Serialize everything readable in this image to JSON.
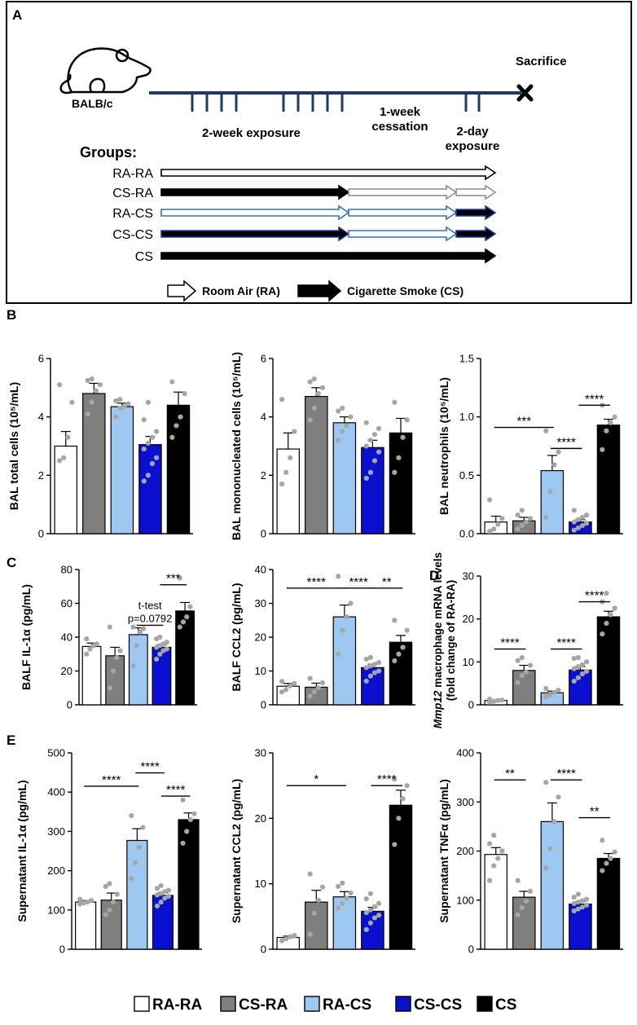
{
  "colors": {
    "RA-RA": "#ffffff",
    "CS-RA": "#7f7f7f",
    "RA-CS": "#9cc8f2",
    "CS-CS": "#0a0fd0",
    "CS": "#000000",
    "dot": "#a6a6a6",
    "timeline": "#1f3864"
  },
  "panel_labels": {
    "a": "A",
    "b": "B",
    "c": "C",
    "d": "D",
    "e": "E"
  },
  "schematic": {
    "strain": "BALB/c",
    "sacrifice": "Sacrifice",
    "exposure1": "2-week exposure",
    "cessation_line1": "1-week",
    "cessation_line2": "cessation",
    "exposure2_line1": "2-day",
    "exposure2_line2": "exposure",
    "groups_title": "Groups:",
    "groups": [
      {
        "label": "RA-RA",
        "segments": [
          "RA"
        ]
      },
      {
        "label": "CS-RA",
        "segments": [
          "CS",
          "RA-grey",
          "RA-grey"
        ]
      },
      {
        "label": "RA-CS",
        "segments": [
          "RA-blue",
          "RA-blue",
          "CS-blue"
        ]
      },
      {
        "label": "CS-CS",
        "segments": [
          "CS-blue",
          "RA-blue",
          "CS-blue"
        ]
      },
      {
        "label": "CS",
        "segments": [
          "CS"
        ]
      }
    ],
    "legend_ra": "Room Air (RA)",
    "legend_cs": "Cigarette Smoke (CS)"
  },
  "chart_data": [
    {
      "id": "b1",
      "type": "bar",
      "ylabel": "BAL total cells (10⁵/mL)",
      "ylim": [
        0,
        6
      ],
      "yticks": [
        "0",
        "2",
        "4",
        "6"
      ],
      "categories": [
        "RA-RA",
        "CS-RA",
        "RA-CS",
        "CS-CS",
        "CS"
      ],
      "values": [
        3.0,
        4.8,
        4.35,
        3.05,
        4.4
      ],
      "errors": [
        0.5,
        0.35,
        0.12,
        0.28,
        0.45
      ],
      "points": [
        [
          2.5,
          2.6,
          3.3,
          4.5,
          5.1
        ],
        [
          4.1,
          4.5,
          4.9,
          5.1,
          5.25,
          5.3
        ],
        [
          4.0,
          4.3,
          4.35,
          4.45,
          4.55,
          4.6
        ],
        [
          1.8,
          2.0,
          2.4,
          2.6,
          2.9,
          3.1,
          3.3,
          3.5,
          3.9,
          4.5
        ],
        [
          3.3,
          3.7,
          4.0,
          4.8,
          5.2
        ]
      ],
      "sig": []
    },
    {
      "id": "b2",
      "type": "bar",
      "ylabel": "BAL mononucleated cells (10⁵/mL)",
      "ylim": [
        0,
        6
      ],
      "yticks": [
        "0",
        "2",
        "4",
        "6"
      ],
      "categories": [
        "RA-RA",
        "CS-RA",
        "RA-CS",
        "CS-CS",
        "CS"
      ],
      "values": [
        2.9,
        4.7,
        3.8,
        2.95,
        3.45
      ],
      "errors": [
        0.55,
        0.3,
        0.2,
        0.25,
        0.5
      ],
      "points": [
        [
          1.7,
          2.1,
          2.6,
          3.5,
          4.6
        ],
        [
          3.9,
          4.3,
          4.8,
          5.0,
          5.2,
          5.3
        ],
        [
          3.2,
          3.5,
          3.7,
          4.0,
          4.2,
          4.3
        ],
        [
          1.9,
          2.1,
          2.5,
          2.8,
          3.0,
          3.2,
          3.4,
          3.6,
          3.8
        ],
        [
          2.1,
          2.6,
          3.3,
          3.9,
          4.5
        ]
      ],
      "sig": []
    },
    {
      "id": "b3",
      "type": "bar",
      "ylabel": "BAL neutrophils (10⁵/mL)",
      "ylim": [
        0,
        1.5
      ],
      "yticks": [
        "0.0",
        "0.5",
        "1.0",
        "1.5"
      ],
      "categories": [
        "RA-RA",
        "CS-RA",
        "RA-CS",
        "CS-CS",
        "CS"
      ],
      "values": [
        0.1,
        0.11,
        0.54,
        0.1,
        0.93
      ],
      "errors": [
        0.05,
        0.03,
        0.13,
        0.02,
        0.05
      ],
      "points": [
        [
          0.02,
          0.04,
          0.08,
          0.13,
          0.29
        ],
        [
          0.04,
          0.07,
          0.1,
          0.13,
          0.16,
          0.2
        ],
        [
          0.14,
          0.36,
          0.59,
          0.7,
          0.88
        ],
        [
          0.03,
          0.05,
          0.07,
          0.09,
          0.1,
          0.12,
          0.14,
          0.16,
          0.2
        ],
        [
          0.72,
          0.88,
          0.95,
          1.0,
          1.1
        ]
      ],
      "sig": [
        {
          "from": 0,
          "to": 2,
          "level": 0.91,
          "label": "***"
        },
        {
          "from": 2,
          "to": 3,
          "level": 0.73,
          "label": "****"
        },
        {
          "from": 3,
          "to": 4,
          "level": 1.1,
          "label": "****"
        }
      ]
    },
    {
      "id": "c1",
      "type": "bar",
      "ylabel": "BALF IL-1α (pg/mL)",
      "ylim": [
        0,
        80
      ],
      "yticks": [
        "0",
        "20",
        "40",
        "60",
        "80"
      ],
      "categories": [
        "RA-RA",
        "CS-RA",
        "RA-CS",
        "CS-CS",
        "CS"
      ],
      "values": [
        34.5,
        29,
        41.5,
        34,
        55.5
      ],
      "errors": [
        2,
        5,
        4,
        1.5,
        5
      ],
      "points": [
        [
          30,
          33,
          35,
          36,
          39
        ],
        [
          10,
          20,
          28,
          32,
          46
        ],
        [
          23,
          35,
          43,
          45,
          46
        ],
        [
          27,
          30,
          32,
          33,
          34,
          35,
          36,
          37,
          39,
          40
        ],
        [
          46,
          49,
          52,
          58,
          75
        ]
      ],
      "sig": [
        {
          "from": 2,
          "to": 3,
          "level": 47,
          "label": "p=0.0792",
          "above": "t-test"
        },
        {
          "from": 3,
          "to": 4,
          "level": 71,
          "label": "***"
        }
      ]
    },
    {
      "id": "c2",
      "type": "bar",
      "ylabel": "BALF CCL2 (pg/mL)",
      "ylim": [
        0,
        40
      ],
      "yticks": [
        "0",
        "10",
        "20",
        "30",
        "40"
      ],
      "categories": [
        "RA-RA",
        "CS-RA",
        "RA-CS",
        "CS-CS",
        "CS"
      ],
      "values": [
        5.5,
        5.2,
        26,
        11,
        18.5
      ],
      "errors": [
        0.8,
        1.2,
        3.5,
        1,
        2
      ],
      "points": [
        [
          3.8,
          4.5,
          5.6,
          6.3,
          6.9
        ],
        [
          2.5,
          3.8,
          5,
          6.5,
          7.8
        ],
        [
          15,
          22,
          26,
          30,
          38
        ],
        [
          7,
          8.5,
          9.5,
          10,
          11,
          11.5,
          12,
          12.5,
          13.5,
          14
        ],
        [
          13,
          15,
          17,
          22,
          25
        ]
      ],
      "sig": [
        {
          "from": 0,
          "to": 2,
          "level": 34.5,
          "label": "****"
        },
        {
          "from": 2,
          "to": 3,
          "level": 34.5,
          "label": "****"
        },
        {
          "from": 3,
          "to": 4,
          "level": 34.5,
          "label": "**"
        }
      ]
    },
    {
      "id": "d",
      "type": "bar",
      "ylabel_italic": "Mmp12",
      "ylabel": " macrophage mRNA levels",
      "ylabel2": "(fold change of RA-RA)",
      "ylim": [
        0,
        30
      ],
      "yticks": [
        "0",
        "10",
        "20",
        "30"
      ],
      "categories": [
        "RA-RA",
        "CS-RA",
        "RA-CS",
        "CS-CS",
        "CS"
      ],
      "values": [
        1,
        8,
        2.8,
        8.1,
        20.5
      ],
      "errors": [
        0.1,
        1.2,
        0.4,
        0.8,
        1.3
      ],
      "points": [
        [
          0.6,
          0.8,
          1.0,
          1.1,
          1.3
        ],
        [
          5.2,
          6.8,
          7.6,
          9.2,
          10.3,
          11
        ],
        [
          1.9,
          2.3,
          2.9,
          3.4,
          3.8
        ],
        [
          5.5,
          6.3,
          7.2,
          7.8,
          8.4,
          8.9,
          9.3,
          10,
          10.8,
          11
        ],
        [
          16.5,
          19,
          21,
          22.5,
          24,
          26
        ]
      ],
      "sig": [
        {
          "from": 0,
          "to": 1,
          "level": 13,
          "label": "****"
        },
        {
          "from": 2,
          "to": 3,
          "level": 13,
          "label": "****"
        },
        {
          "from": 3,
          "to": 4,
          "level": 24,
          "label": "****"
        }
      ]
    },
    {
      "id": "e1",
      "type": "bar",
      "ylabel": "Supernatant IL-1α (pg/mL)",
      "ylim": [
        0,
        500
      ],
      "yticks": [
        "0",
        "100",
        "200",
        "300",
        "400",
        "500"
      ],
      "categories": [
        "RA-RA",
        "CS-RA",
        "RA-CS",
        "CS-CS",
        "CS"
      ],
      "values": [
        120,
        125,
        277,
        137,
        330
      ],
      "errors": [
        4,
        18,
        30,
        7,
        17
      ],
      "points": [
        [
          115,
          118,
          120,
          124,
          127
        ],
        [
          88,
          100,
          120,
          140,
          160,
          167
        ],
        [
          180,
          220,
          260,
          310,
          340
        ],
        [
          110,
          120,
          130,
          135,
          138,
          142,
          147,
          150,
          155,
          162
        ],
        [
          270,
          300,
          330,
          345,
          380
        ]
      ],
      "sig": [
        {
          "from": 0,
          "to": 2,
          "level": 415,
          "label": "****"
        },
        {
          "from": 2,
          "to": 3,
          "level": 449,
          "label": "****"
        },
        {
          "from": 3,
          "to": 4,
          "level": 390,
          "label": "****"
        }
      ]
    },
    {
      "id": "e2",
      "type": "bar",
      "ylabel": "Supernatant CCL2 (pg/mL)",
      "ylim": [
        0,
        30
      ],
      "yticks": [
        "0",
        "10",
        "20",
        "30"
      ],
      "categories": [
        "RA-RA",
        "CS-RA",
        "RA-CS",
        "CS-CS",
        "CS"
      ],
      "values": [
        1.8,
        7.2,
        8,
        5.8,
        22
      ],
      "errors": [
        0.2,
        1.8,
        0.8,
        0.6,
        2.3
      ],
      "points": [
        [
          1.3,
          1.6,
          1.9,
          2.1
        ],
        [
          2.3,
          5.5,
          7.5,
          9.5,
          11.5
        ],
        [
          6.3,
          7,
          7.8,
          8.6,
          9.6,
          10.1
        ],
        [
          3,
          4,
          4.8,
          5.2,
          5.6,
          6,
          6.5,
          7,
          7.7,
          8.5
        ],
        [
          16,
          20,
          23,
          25,
          26
        ]
      ],
      "sig": [
        {
          "from": 0,
          "to": 2,
          "level": 25,
          "label": "*"
        },
        {
          "from": 3,
          "to": 4,
          "level": 25,
          "label": "****"
        }
      ]
    },
    {
      "id": "e3",
      "type": "bar",
      "ylabel": "Supernatant TNFα (pg/mL)",
      "ylim": [
        0,
        400
      ],
      "yticks": [
        "0",
        "100",
        "200",
        "300",
        "400"
      ],
      "categories": [
        "RA-RA",
        "CS-RA",
        "RA-CS",
        "CS-CS",
        "CS"
      ],
      "values": [
        193,
        106,
        260,
        92,
        185
      ],
      "errors": [
        14,
        12,
        38,
        5,
        10
      ],
      "points": [
        [
          140,
          170,
          185,
          200,
          215,
          232
        ],
        [
          70,
          85,
          98,
          118,
          140
        ],
        [
          165,
          205,
          260,
          310,
          340
        ],
        [
          78,
          82,
          86,
          90,
          93,
          96,
          99,
          102,
          106,
          112
        ],
        [
          160,
          175,
          185,
          198,
          222
        ]
      ],
      "sig": [
        {
          "from": 0,
          "to": 1,
          "level": 345,
          "label": "**"
        },
        {
          "from": 2,
          "to": 3,
          "level": 345,
          "label": "****"
        },
        {
          "from": 3,
          "to": 4,
          "level": 268,
          "label": "**"
        }
      ]
    }
  ],
  "legend": [
    "RA-RA",
    "CS-RA",
    "RA-CS",
    "CS-CS",
    "CS"
  ]
}
